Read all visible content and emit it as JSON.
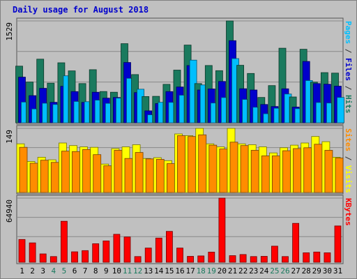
{
  "chart_data": {
    "type": "bar",
    "title": "Daily usage for August 2018",
    "categories": [
      "1",
      "2",
      "3",
      "4",
      "5",
      "6",
      "7",
      "8",
      "9",
      "10",
      "11",
      "12",
      "13",
      "14",
      "15",
      "16",
      "17",
      "18",
      "19",
      "20",
      "21",
      "22",
      "23",
      "24",
      "25",
      "26",
      "27",
      "28",
      "29",
      "30",
      "31"
    ],
    "weekend_days": [
      "4",
      "5",
      "11",
      "12",
      "18",
      "19",
      "25",
      "26"
    ],
    "panels": [
      {
        "key": "top",
        "max_label": "1529",
        "ylim": [
          0,
          1529
        ],
        "right_label": [
          {
            "text": "Pages",
            "color": "#00bfff"
          },
          {
            "text": " / ",
            "color": "#333333"
          },
          {
            "text": "Files",
            "color": "#0000cc"
          },
          {
            "text": " / ",
            "color": "#333333"
          },
          {
            "text": "Hits",
            "color": "#1a7a5e"
          }
        ],
        "series": [
          {
            "name": "Hits",
            "color": "#1a7a5e",
            "values": [
              850,
              612,
              955,
              595,
              901,
              779,
              589,
              797,
              469,
              459,
              1188,
              724,
              394,
              397,
              577,
              791,
              1167,
              589,
              860,
              782,
              1529,
              863,
              740,
              380,
              558,
              1120,
              387,
              1104,
              611,
              753,
              746
            ]
          },
          {
            "name": "Files",
            "color": "#0000cc",
            "values": [
              685,
              407,
              517,
              307,
              548,
              468,
              306,
              459,
              370,
              380,
              905,
              453,
              179,
              288,
              468,
              537,
              859,
              492,
              508,
              620,
              1233,
              511,
              492,
              274,
              244,
              510,
              236,
              921,
              589,
              579,
              550
            ]
          },
          {
            "name": "Pages",
            "color": "#00bfff",
            "values": [
              310,
              207,
              293,
              274,
              705,
              319,
              316,
              339,
              291,
              370,
              667,
              504,
              119,
              307,
              306,
              414,
              940,
              568,
              296,
              378,
              964,
              350,
              232,
              135,
              218,
              431,
              212,
              634,
              304,
              296,
              380
            ]
          }
        ]
      },
      {
        "key": "mid",
        "max_label": "149",
        "ylim": [
          0,
          149
        ],
        "right_label": [
          {
            "text": "Sites",
            "color": "#ff8c00"
          },
          {
            "text": " / ",
            "color": "#333333"
          },
          {
            "text": "Visits",
            "color": "#ffff00"
          }
        ],
        "series": [
          {
            "name": "Visits",
            "color": "#ffff00",
            "values": [
              113,
              72,
              82,
              76,
              115,
              109,
              106,
              105,
              66,
              102,
              106,
              111,
              79,
              81,
              74,
              136,
              132,
              149,
              113,
              106,
              149,
              113,
              111,
              106,
              92,
              104,
              110,
              115,
              130,
              118,
              82
            ]
          },
          {
            "name": "Sites",
            "color": "#ff8c00",
            "values": [
              105,
              68,
              75,
              70,
              96,
              95,
              100,
              88,
              62,
              98,
              79,
              93,
              78,
              77,
              67,
              132,
              130,
              134,
              110,
              101,
              117,
              109,
              98,
              85,
              85,
              97,
              102,
              104,
              112,
              98,
              80
            ]
          }
        ]
      },
      {
        "key": "bot",
        "max_label": "64940",
        "ylim": [
          0,
          64940
        ],
        "right_label": [
          {
            "text": "KBytes",
            "color": "#ff0000"
          }
        ],
        "series": [
          {
            "name": "KBytes",
            "color": "#ff0000",
            "values": [
              23100,
              19600,
              8500,
              5800,
              41500,
              10600,
              11800,
              18800,
              21600,
              28300,
              25600,
              5800,
              14400,
              24500,
              31300,
              14400,
              6000,
              6400,
              10300,
              64940,
              6700,
              7800,
              5800,
              6000,
              16300,
              5800,
              39400,
              9600,
              10400,
              9600,
              36800
            ]
          }
        ]
      }
    ]
  }
}
